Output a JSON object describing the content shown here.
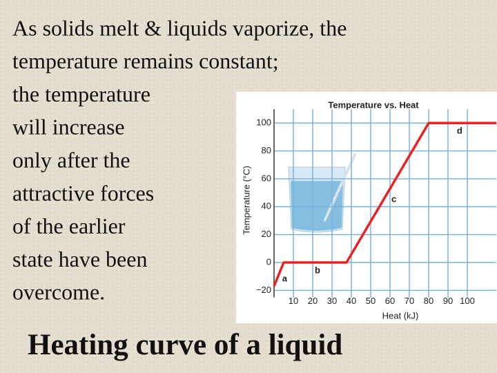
{
  "slide": {
    "body_lines": [
      "As solids melt & liquids vaporize, the",
      "temperature remains constant;",
      "the temperature",
      "will increase",
      "only after the",
      "attractive forces",
      "of the earlier",
      "state have been",
      "overcome."
    ],
    "caption": "Heating curve of a liquid"
  },
  "chart_data": {
    "type": "line",
    "title": "Temperature vs. Heat",
    "x_label": "Heat (kJ)",
    "y_label": "Temperature (°C)",
    "series": [
      {
        "name": "Temperature",
        "color": "#e8231f",
        "x": [
          0,
          5,
          37.5,
          80,
          115
        ],
        "values": [
          -17,
          0,
          0,
          100,
          100
        ]
      }
    ],
    "annotations": [
      {
        "text": "a",
        "x": 5.5,
        "y": -12
      },
      {
        "text": "b",
        "x": 22.5,
        "y": -6
      },
      {
        "text": "c",
        "x": 62,
        "y": 45
      },
      {
        "text": "d",
        "x": 96,
        "y": 94
      }
    ],
    "xlim": [
      0,
      115
    ],
    "ylim": [
      -25,
      110
    ],
    "xticks": [
      10,
      20,
      30,
      40,
      50,
      60,
      70,
      80,
      90,
      100
    ],
    "yticks": [
      {
        "value": -20,
        "label": "−20"
      },
      0,
      20,
      40,
      60,
      80,
      100
    ],
    "grid": true,
    "grid_color": "#7fb2e0"
  }
}
